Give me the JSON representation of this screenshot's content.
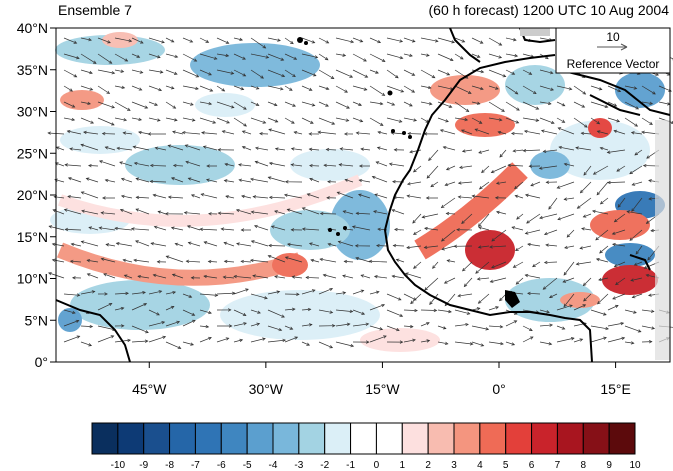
{
  "header": {
    "left": "Ensemble 7",
    "right": "(60 h forecast) 1200 UTC 10 Aug 2004"
  },
  "reference_vector": {
    "magnitude": "10",
    "label": "Reference Vector"
  },
  "axes": {
    "lat_ticks": [
      {
        "value": 40,
        "label": "40°N"
      },
      {
        "value": 35,
        "label": "35°N"
      },
      {
        "value": 30,
        "label": "30°N"
      },
      {
        "value": 25,
        "label": "25°N"
      },
      {
        "value": 20,
        "label": "20°N"
      },
      {
        "value": 15,
        "label": "15°N"
      },
      {
        "value": 10,
        "label": "10°N"
      },
      {
        "value": 5,
        "label": "5°N"
      },
      {
        "value": 0,
        "label": "0°"
      }
    ],
    "lon_ticks": [
      {
        "value": -45,
        "label": "45°W"
      },
      {
        "value": -30,
        "label": "30°W"
      },
      {
        "value": -15,
        "label": "15°W"
      },
      {
        "value": 0,
        "label": "0°"
      },
      {
        "value": 15,
        "label": "15°E"
      }
    ]
  },
  "colorbar": {
    "labels": [
      "-10",
      "-9",
      "-8",
      "-7",
      "-6",
      "-5",
      "-4",
      "-3",
      "-2",
      "-1",
      "0",
      "1",
      "2",
      "3",
      "4",
      "5",
      "6",
      "7",
      "8",
      "9",
      "10"
    ],
    "colors": [
      "#0a2f5e",
      "#0d3a75",
      "#1a4f8e",
      "#2566a8",
      "#2f74b5",
      "#3f86c0",
      "#5b9fcf",
      "#79b7db",
      "#a3d3e3",
      "#dbeff7",
      "#ffffff",
      "#ffffff",
      "#fde0df",
      "#f8bcb0",
      "#f4957f",
      "#ef6b56",
      "#e3403a",
      "#c9232b",
      "#a8151f",
      "#861017",
      "#5c0a0c"
    ]
  }
}
